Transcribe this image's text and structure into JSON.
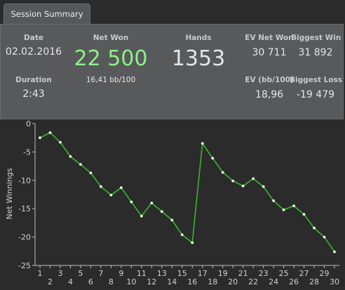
{
  "tabs": [
    {
      "label": "Session Summary"
    }
  ],
  "summary": {
    "date_label": "Date",
    "date_value": "02.02.2016",
    "duration_label": "Duration",
    "duration_value": "2:43",
    "net_won_label": "Net Won",
    "net_won_value": "22 500",
    "net_won_sub": "16,41 bb/100",
    "hands_label": "Hands",
    "hands_value": "1353",
    "ev_net_won_label": "EV Net Won",
    "ev_net_won_value": "30 711",
    "biggest_win_label": "Biggest Win",
    "biggest_win_value": "31 892",
    "ev_bb_label": "EV (bb/100)",
    "ev_bb_value": "18,96",
    "biggest_loss_label": "Biggest Loss",
    "biggest_loss_value": "-19 479"
  },
  "colors": {
    "accent_green": "#8ef08a",
    "line_green": "#37b62c",
    "point": "#e8ffe0"
  },
  "chart_data": {
    "type": "line",
    "ylabel": "Net Winnings",
    "xlabel": "",
    "ylim": [
      -25,
      0
    ],
    "xlim": [
      1,
      30
    ],
    "yticks": [
      0,
      -5,
      -10,
      -15,
      -20,
      -25
    ],
    "xticks": [
      1,
      2,
      3,
      4,
      5,
      6,
      7,
      8,
      9,
      10,
      11,
      12,
      13,
      14,
      15,
      16,
      17,
      18,
      19,
      20,
      21,
      22,
      23,
      24,
      25,
      26,
      27,
      28,
      29,
      30
    ],
    "grid": false,
    "series": [
      {
        "x": [
          1,
          2,
          3,
          4,
          5,
          6,
          7,
          8,
          9,
          10,
          11,
          12,
          13,
          14,
          15,
          16,
          17,
          18,
          19,
          20,
          21,
          22,
          23,
          24,
          25,
          26,
          27,
          28,
          29,
          30
        ],
        "values": [
          -2.5,
          -1.6,
          -3.3,
          -5.8,
          -7.2,
          -8.7,
          -11.1,
          -12.6,
          -11.3,
          -13.8,
          -16.3,
          -14.0,
          -15.5,
          -17.0,
          -19.6,
          -21.0,
          -3.5,
          -6.1,
          -8.6,
          -10.1,
          -11.0,
          -9.7,
          -11.1,
          -13.6,
          -15.2,
          -14.5,
          -16.0,
          -18.4,
          -20.0,
          -22.6
        ]
      }
    ]
  }
}
